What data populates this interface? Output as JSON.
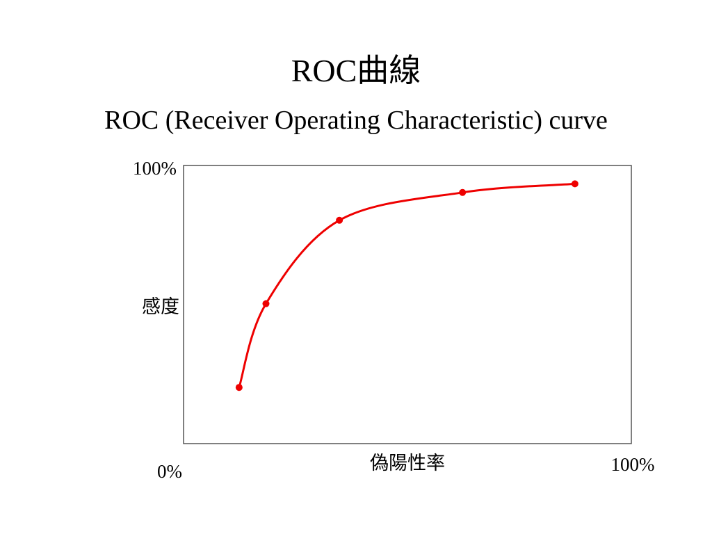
{
  "slide": {
    "title": "ROC曲線",
    "subtitle": "ROC (Receiver Operating Characteristic) curve"
  },
  "chart_data": {
    "type": "line",
    "title": "ROC曲線",
    "subtitle": "ROC (Receiver Operating Characteristic) curve",
    "xlabel": "偽陽性率",
    "ylabel": "感度",
    "x_origin_label": "0%",
    "x_max_label": "100%",
    "y_max_label": "100%",
    "xlim": [
      0,
      100
    ],
    "ylim": [
      0,
      100
    ],
    "grid": false,
    "line_color": "#ee0000",
    "series": [
      {
        "x": [
          12.4,
          18.4,
          34.8,
          62.3,
          87.4
        ],
        "y": [
          20.2,
          50.3,
          80.3,
          90.3,
          93.4
        ]
      }
    ]
  }
}
